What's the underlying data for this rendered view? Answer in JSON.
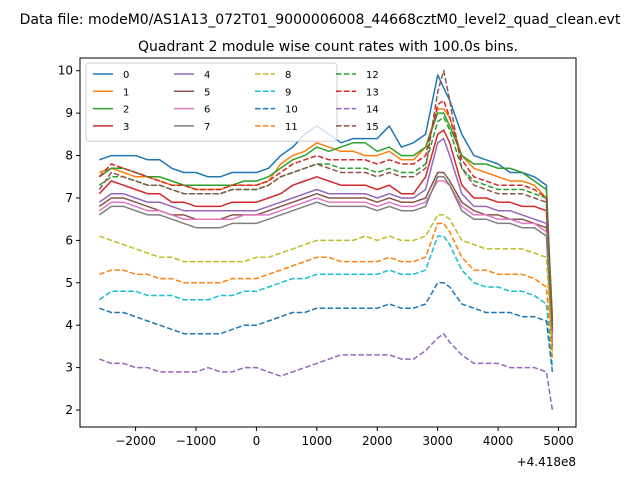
{
  "chart_data": {
    "type": "line",
    "suptitle": "Data file: modeM0/AS1A13_072T01_9000006008_44668cztM0_level2_quad_clean.evt",
    "title": "Quadrant 2 module wise count rates with 100.0s bins.",
    "xlabel": "",
    "ylabel": "",
    "x_offset_label": "+4.418e8",
    "xlim": [
      -2920,
      5290
    ],
    "ylim": [
      1.6,
      10.3
    ],
    "x_ticks": [
      -2000,
      -1000,
      0,
      1000,
      2000,
      3000,
      4000,
      5000
    ],
    "x_tick_labels": [
      "−2000",
      "−1000",
      "0",
      "1000",
      "2000",
      "3000",
      "4000",
      "5000"
    ],
    "y_ticks": [
      2,
      3,
      4,
      5,
      6,
      7,
      8,
      9,
      10
    ],
    "y_tick_labels": [
      "2",
      "3",
      "4",
      "5",
      "6",
      "7",
      "8",
      "9",
      "10"
    ],
    "grid": false,
    "legend_position": "top-left",
    "legend_columns": 4,
    "x": [
      -2600,
      -2400,
      -2200,
      -2000,
      -1800,
      -1600,
      -1400,
      -1200,
      -1000,
      -800,
      -600,
      -400,
      -200,
      0,
      200,
      400,
      600,
      800,
      1000,
      1200,
      1400,
      1600,
      1800,
      2000,
      2200,
      2400,
      2600,
      2800,
      3000,
      3100,
      3200,
      3400,
      3600,
      3800,
      4000,
      4200,
      4400,
      4600,
      4800,
      4900
    ],
    "series": [
      {
        "name": "0",
        "color": "#1f77b4",
        "dash": "solid",
        "values": [
          7.9,
          8.0,
          8.0,
          8.0,
          7.9,
          7.9,
          7.7,
          7.6,
          7.6,
          7.5,
          7.5,
          7.6,
          7.6,
          7.6,
          7.7,
          8.0,
          8.2,
          8.5,
          8.7,
          8.5,
          8.3,
          8.4,
          8.4,
          8.4,
          8.7,
          8.2,
          8.3,
          8.5,
          9.9,
          9.6,
          9.3,
          8.5,
          8.0,
          7.9,
          7.8,
          7.6,
          7.6,
          7.5,
          7.3,
          3.9
        ]
      },
      {
        "name": "1",
        "color": "#ff7f0e",
        "dash": "solid",
        "values": [
          7.6,
          7.7,
          7.6,
          7.5,
          7.5,
          7.4,
          7.3,
          7.3,
          7.2,
          7.2,
          7.2,
          7.3,
          7.3,
          7.3,
          7.4,
          7.8,
          8.0,
          8.1,
          8.3,
          8.2,
          8.1,
          8.1,
          8.0,
          8.0,
          8.1,
          7.9,
          7.9,
          8.2,
          9.1,
          9.1,
          8.9,
          8.0,
          7.7,
          7.6,
          7.5,
          7.4,
          7.4,
          7.3,
          7.0,
          4.2
        ]
      },
      {
        "name": "2",
        "color": "#2ca02c",
        "dash": "solid",
        "values": [
          7.5,
          7.7,
          7.7,
          7.6,
          7.5,
          7.5,
          7.4,
          7.3,
          7.3,
          7.3,
          7.3,
          7.3,
          7.4,
          7.4,
          7.5,
          7.7,
          7.9,
          8.0,
          8.2,
          8.1,
          8.2,
          8.3,
          8.3,
          8.1,
          8.2,
          8.0,
          8.0,
          8.2,
          9.0,
          9.0,
          8.7,
          8.0,
          7.8,
          7.8,
          7.7,
          7.7,
          7.6,
          7.4,
          7.2,
          4.1
        ]
      },
      {
        "name": "3",
        "color": "#d62728",
        "dash": "solid",
        "values": [
          7.1,
          7.4,
          7.3,
          7.2,
          7.1,
          7.1,
          6.9,
          6.9,
          6.8,
          6.8,
          6.8,
          6.9,
          6.9,
          6.9,
          7.0,
          7.1,
          7.3,
          7.4,
          7.5,
          7.4,
          7.3,
          7.3,
          7.3,
          7.2,
          7.3,
          7.1,
          7.1,
          7.5,
          8.5,
          8.6,
          8.3,
          7.3,
          7.0,
          7.0,
          6.9,
          6.9,
          6.8,
          6.8,
          6.7,
          3.8
        ]
      },
      {
        "name": "4",
        "color": "#9467bd",
        "dash": "solid",
        "values": [
          6.9,
          7.1,
          7.1,
          7.0,
          6.9,
          6.9,
          6.8,
          6.7,
          6.7,
          6.7,
          6.7,
          6.7,
          6.7,
          6.7,
          6.8,
          6.9,
          7.0,
          7.1,
          7.2,
          7.1,
          7.1,
          7.1,
          7.1,
          7.0,
          7.1,
          7.0,
          7.0,
          7.2,
          8.3,
          8.4,
          8.0,
          7.1,
          6.8,
          6.8,
          6.7,
          6.7,
          6.6,
          6.5,
          6.4,
          3.6
        ]
      },
      {
        "name": "5",
        "color": "#8c564b",
        "dash": "solid",
        "values": [
          6.8,
          7.0,
          7.0,
          6.9,
          6.8,
          6.7,
          6.6,
          6.6,
          6.5,
          6.5,
          6.5,
          6.6,
          6.6,
          6.6,
          6.7,
          6.8,
          6.9,
          7.0,
          7.1,
          7.0,
          7.0,
          7.0,
          7.0,
          6.9,
          7.0,
          6.9,
          6.9,
          7.0,
          7.6,
          7.6,
          7.4,
          6.9,
          6.7,
          6.6,
          6.6,
          6.5,
          6.5,
          6.4,
          6.3,
          3.5
        ]
      },
      {
        "name": "6",
        "color": "#e377c2",
        "dash": "solid",
        "values": [
          6.7,
          6.9,
          6.9,
          6.8,
          6.7,
          6.7,
          6.6,
          6.5,
          6.5,
          6.5,
          6.5,
          6.5,
          6.6,
          6.6,
          6.6,
          6.7,
          6.8,
          6.9,
          7.0,
          6.9,
          6.9,
          6.9,
          6.9,
          6.8,
          6.9,
          6.8,
          6.8,
          6.9,
          7.4,
          7.4,
          7.3,
          6.8,
          6.6,
          6.6,
          6.5,
          6.5,
          6.4,
          6.4,
          6.2,
          3.5
        ]
      },
      {
        "name": "7",
        "color": "#7f7f7f",
        "dash": "solid",
        "values": [
          6.6,
          6.8,
          6.8,
          6.7,
          6.6,
          6.6,
          6.5,
          6.4,
          6.3,
          6.3,
          6.3,
          6.4,
          6.4,
          6.4,
          6.5,
          6.6,
          6.7,
          6.8,
          6.9,
          6.8,
          6.8,
          6.8,
          6.8,
          6.7,
          6.8,
          6.7,
          6.7,
          6.8,
          7.5,
          7.5,
          7.3,
          6.7,
          6.5,
          6.5,
          6.4,
          6.4,
          6.3,
          6.3,
          6.1,
          3.4
        ]
      },
      {
        "name": "8",
        "color": "#bcbd22",
        "dash": "dashed",
        "values": [
          6.1,
          6.0,
          5.9,
          5.8,
          5.7,
          5.6,
          5.6,
          5.5,
          5.5,
          5.5,
          5.5,
          5.5,
          5.5,
          5.6,
          5.6,
          5.7,
          5.8,
          5.9,
          6.0,
          6.0,
          6.0,
          6.0,
          6.1,
          6.0,
          6.1,
          6.0,
          6.0,
          6.1,
          6.6,
          6.6,
          6.5,
          6.0,
          5.9,
          5.8,
          5.8,
          5.8,
          5.8,
          5.7,
          5.6,
          3.3
        ]
      },
      {
        "name": "9",
        "color": "#17becf",
        "dash": "dashed",
        "values": [
          4.6,
          4.8,
          4.8,
          4.8,
          4.7,
          4.7,
          4.7,
          4.6,
          4.6,
          4.6,
          4.7,
          4.7,
          4.8,
          4.8,
          4.9,
          5.0,
          5.1,
          5.1,
          5.2,
          5.2,
          5.2,
          5.2,
          5.2,
          5.2,
          5.3,
          5.2,
          5.2,
          5.3,
          6.1,
          6.1,
          5.9,
          5.3,
          5.0,
          4.9,
          4.9,
          4.8,
          4.8,
          4.7,
          4.5,
          3.0
        ]
      },
      {
        "name": "10",
        "color": "#1f77b4",
        "dash": "dashed",
        "values": [
          4.4,
          4.3,
          4.3,
          4.2,
          4.1,
          4.0,
          3.9,
          3.8,
          3.8,
          3.8,
          3.8,
          3.9,
          4.0,
          4.0,
          4.1,
          4.2,
          4.3,
          4.3,
          4.4,
          4.4,
          4.4,
          4.4,
          4.4,
          4.4,
          4.5,
          4.4,
          4.4,
          4.5,
          5.0,
          5.0,
          4.9,
          4.5,
          4.4,
          4.3,
          4.3,
          4.3,
          4.2,
          4.2,
          4.1,
          2.9
        ]
      },
      {
        "name": "11",
        "color": "#ff7f0e",
        "dash": "dashed",
        "values": [
          5.2,
          5.3,
          5.3,
          5.2,
          5.2,
          5.1,
          5.1,
          5.0,
          5.0,
          5.0,
          5.0,
          5.1,
          5.1,
          5.1,
          5.2,
          5.3,
          5.4,
          5.5,
          5.6,
          5.6,
          5.5,
          5.5,
          5.5,
          5.5,
          5.6,
          5.5,
          5.5,
          5.6,
          6.4,
          6.4,
          6.2,
          5.6,
          5.3,
          5.3,
          5.2,
          5.2,
          5.2,
          5.1,
          4.9,
          3.2
        ]
      },
      {
        "name": "12",
        "color": "#2ca02c",
        "dash": "dashed",
        "values": [
          7.3,
          7.5,
          7.5,
          7.4,
          7.3,
          7.3,
          7.2,
          7.1,
          7.1,
          7.1,
          7.1,
          7.2,
          7.2,
          7.2,
          7.3,
          7.5,
          7.6,
          7.7,
          7.8,
          7.8,
          7.7,
          7.7,
          7.7,
          7.6,
          7.7,
          7.6,
          7.6,
          7.8,
          8.8,
          8.9,
          8.6,
          7.7,
          7.4,
          7.3,
          7.2,
          7.2,
          7.2,
          7.1,
          7.0,
          4.0
        ]
      },
      {
        "name": "13",
        "color": "#d62728",
        "dash": "dashed",
        "values": [
          7.5,
          7.8,
          7.7,
          7.6,
          7.5,
          7.4,
          7.3,
          7.3,
          7.2,
          7.2,
          7.2,
          7.3,
          7.3,
          7.3,
          7.4,
          7.6,
          7.8,
          7.9,
          8.0,
          7.9,
          7.9,
          7.9,
          7.9,
          7.8,
          7.9,
          7.8,
          7.8,
          8.0,
          9.2,
          9.3,
          8.9,
          7.9,
          7.5,
          7.4,
          7.3,
          7.3,
          7.3,
          7.2,
          7.0,
          4.0
        ]
      },
      {
        "name": "14",
        "color": "#9467bd",
        "dash": "dashed",
        "values": [
          3.2,
          3.1,
          3.1,
          3.0,
          3.0,
          2.9,
          2.9,
          2.9,
          2.9,
          3.0,
          2.9,
          2.9,
          3.0,
          3.0,
          2.9,
          2.8,
          2.9,
          3.0,
          3.1,
          3.2,
          3.3,
          3.3,
          3.3,
          3.3,
          3.3,
          3.2,
          3.2,
          3.4,
          3.7,
          3.8,
          3.6,
          3.3,
          3.1,
          3.1,
          3.1,
          3.0,
          3.0,
          3.0,
          2.9,
          2.0
        ]
      },
      {
        "name": "15",
        "color": "#8c564b",
        "dash": "dashed",
        "values": [
          7.2,
          7.6,
          7.5,
          7.4,
          7.3,
          7.3,
          7.2,
          7.1,
          7.1,
          7.1,
          7.1,
          7.2,
          7.2,
          7.2,
          7.3,
          7.5,
          7.6,
          7.7,
          7.8,
          7.7,
          7.6,
          7.6,
          7.6,
          7.5,
          7.6,
          7.5,
          7.5,
          7.7,
          9.5,
          10.0,
          9.3,
          7.7,
          7.3,
          7.2,
          7.1,
          7.1,
          7.1,
          7.0,
          6.9,
          3.9
        ]
      }
    ]
  }
}
